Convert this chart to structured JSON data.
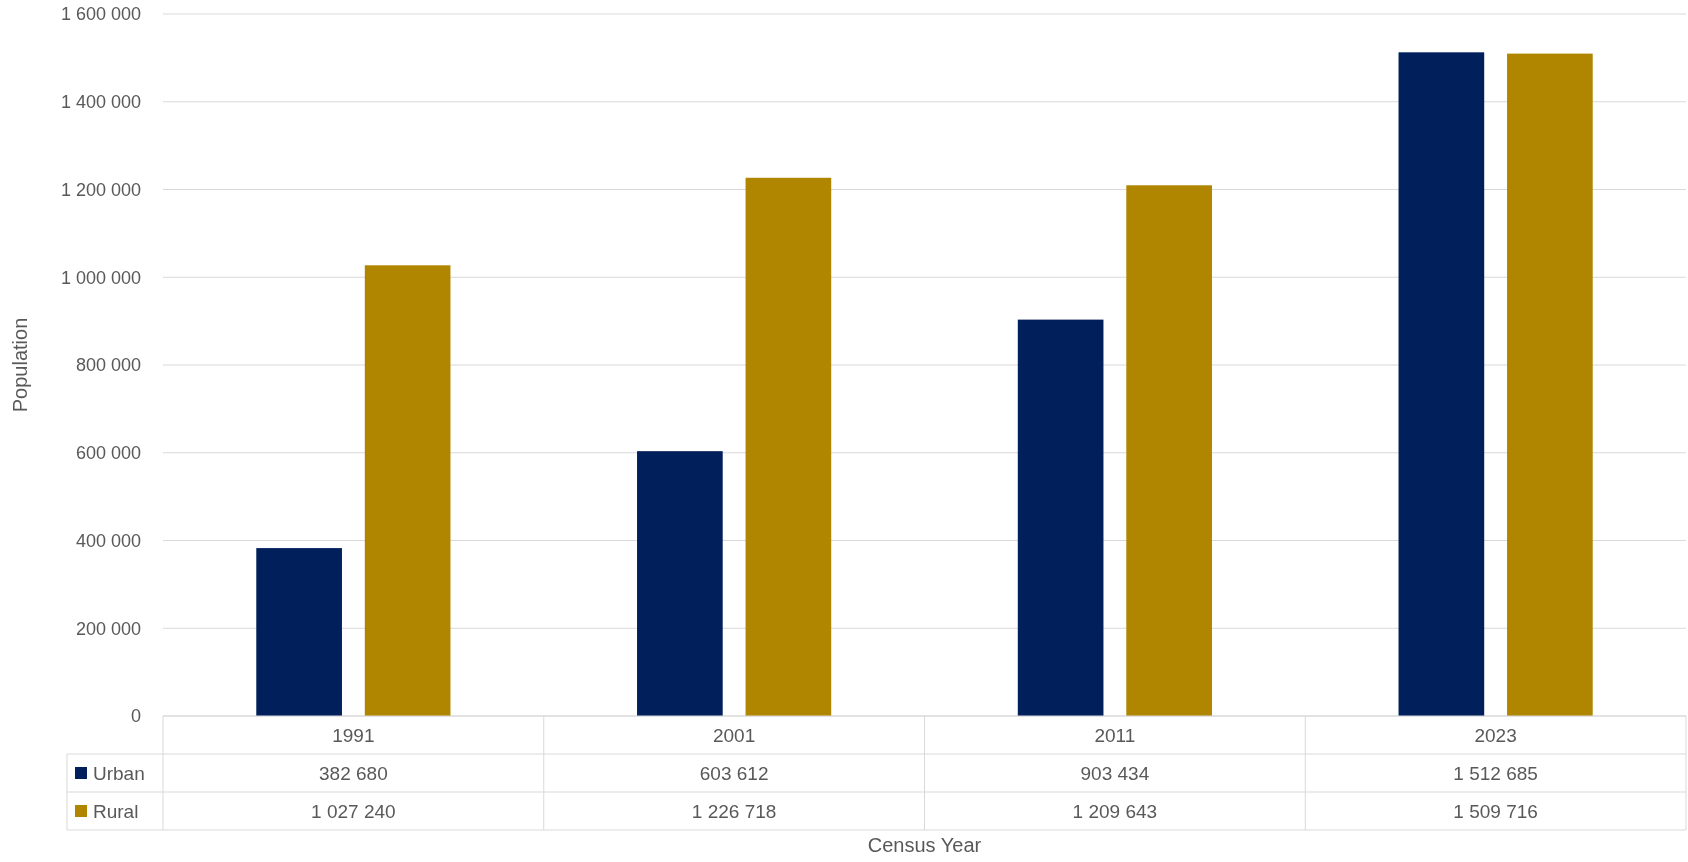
{
  "chart_data": {
    "type": "bar",
    "xlabel": "Census Year",
    "ylabel": "Population",
    "categories": [
      "1991",
      "2001",
      "2011",
      "2023"
    ],
    "series": [
      {
        "name": "Urban",
        "color": "#001f5b",
        "values": [
          382680,
          603612,
          903434,
          1512685
        ],
        "value_labels": [
          "382 680",
          "603 612",
          "903 434",
          "1 512 685"
        ]
      },
      {
        "name": "Rural",
        "color": "#b08600",
        "values": [
          1027240,
          1226718,
          1209643,
          1509716
        ],
        "value_labels": [
          "1 027 240",
          "1 226 718",
          "1 209 643",
          "1 509 716"
        ]
      }
    ],
    "ylim": [
      0,
      1600000
    ],
    "yticks": [
      0,
      {
        "value": 200000,
        "label": "200 000"
      },
      {
        "value": 400000,
        "label": "400 000"
      },
      {
        "value": 600000,
        "label": "600 000"
      },
      {
        "value": 800000,
        "label": "800 000"
      },
      {
        "value": 1000000,
        "label": "1 000 000"
      },
      {
        "value": 1200000,
        "label": "1 200 000"
      },
      {
        "value": 1400000,
        "label": "1 400 000"
      },
      {
        "value": 1600000,
        "label": "1 600 000"
      }
    ],
    "grid": "y",
    "legend": "bottom"
  }
}
